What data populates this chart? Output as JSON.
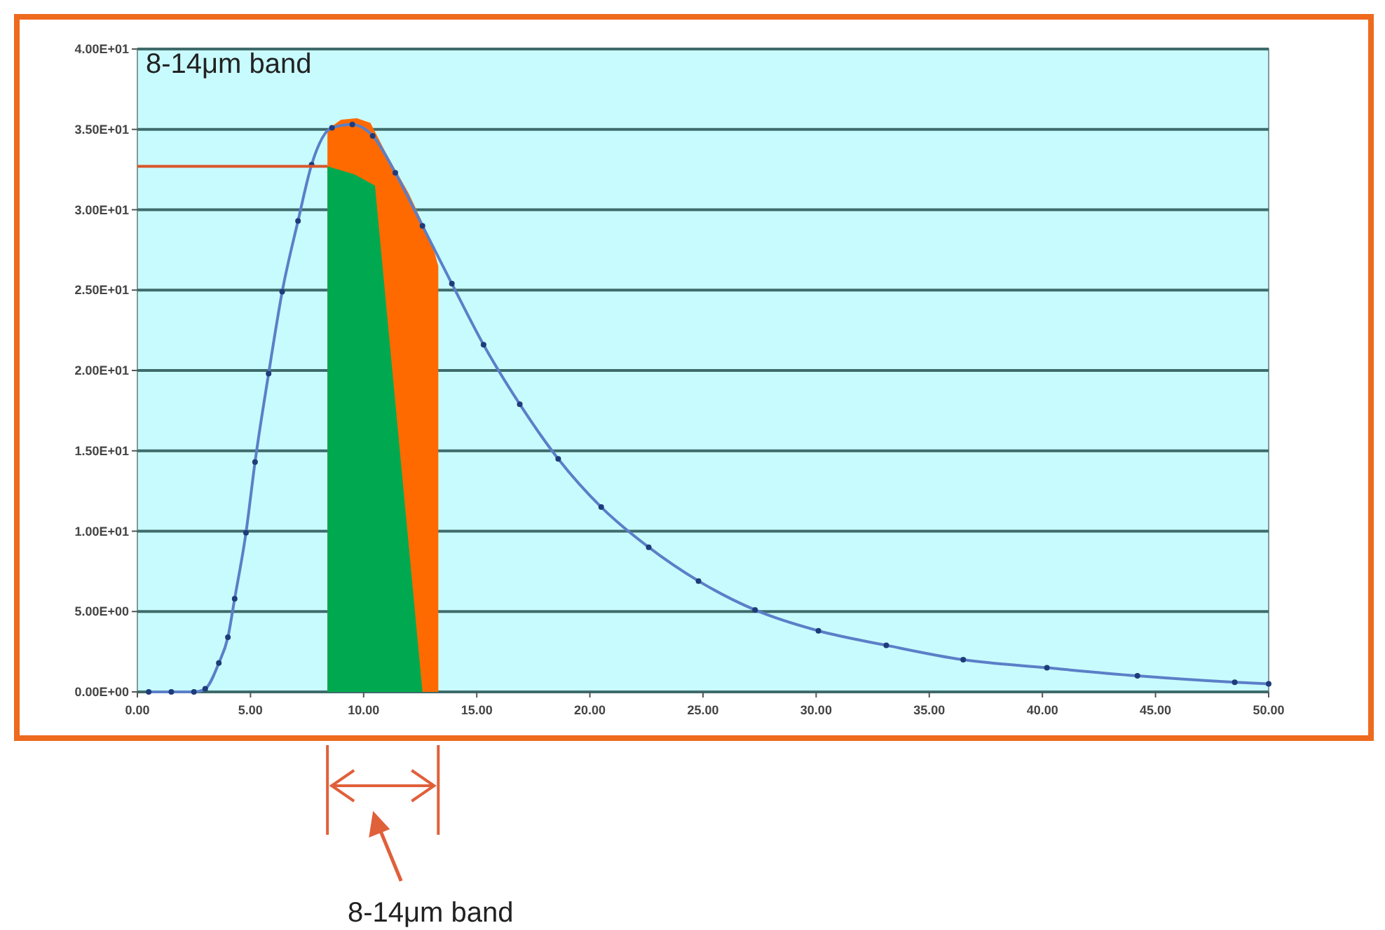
{
  "chart_data": {
    "type": "line",
    "xlim": [
      0,
      50
    ],
    "ylim": [
      0,
      40
    ],
    "xticks": [
      {
        "value": 0,
        "label": "0.00"
      },
      {
        "value": 5,
        "label": "5.00"
      },
      {
        "value": 10,
        "label": "10.00"
      },
      {
        "value": 15,
        "label": "15.00"
      },
      {
        "value": 20,
        "label": "20.00"
      },
      {
        "value": 25,
        "label": "25.00"
      },
      {
        "value": 30,
        "label": "30.00"
      },
      {
        "value": 35,
        "label": "35.00"
      },
      {
        "value": 40,
        "label": "40.00"
      },
      {
        "value": 45,
        "label": "45.00"
      },
      {
        "value": 50,
        "label": "50.00"
      }
    ],
    "yticks": [
      {
        "value": 0,
        "label": "0.00E+00"
      },
      {
        "value": 5,
        "label": "5.00E+00"
      },
      {
        "value": 10,
        "label": "1.00E+01"
      },
      {
        "value": 15,
        "label": "1.50E+01"
      },
      {
        "value": 20,
        "label": "2.00E+01"
      },
      {
        "value": 25,
        "label": "2.50E+01"
      },
      {
        "value": 30,
        "label": "3.00E+01"
      },
      {
        "value": 35,
        "label": "3.50E+01"
      },
      {
        "value": 40,
        "label": "4.00E+01"
      }
    ],
    "grid": "y",
    "series": [
      {
        "type": "area",
        "color": "#ff6a00",
        "x": [
          8.4,
          9.0,
          9.7,
          10.3,
          11.0,
          12.0,
          13.0,
          13.3
        ],
        "values": [
          35.0,
          35.6,
          35.7,
          35.4,
          33.5,
          31.0,
          28.0,
          26.5
        ]
      },
      {
        "type": "area",
        "color": "#00a94f",
        "x": [
          8.4,
          9.6,
          10.5,
          12.6
        ],
        "values": [
          32.7,
          32.2,
          31.5,
          0
        ]
      },
      {
        "color": "#5b7fc8",
        "marker": "circle",
        "x": [
          0.5,
          1.5,
          2.5,
          3.0,
          3.6,
          4.0,
          4.3,
          4.8,
          5.2,
          5.8,
          6.4,
          7.1,
          7.7,
          8.6,
          9.5,
          10.4,
          11.4,
          12.6,
          13.9,
          15.3,
          16.9,
          18.6,
          20.5,
          22.6,
          24.8,
          27.3,
          30.1,
          33.1,
          36.5,
          40.2,
          44.2,
          48.5,
          50
        ],
        "values": [
          0,
          0,
          0,
          0.2,
          1.8,
          3.4,
          5.8,
          9.9,
          14.3,
          19.8,
          24.9,
          29.3,
          32.8,
          35.1,
          35.3,
          34.6,
          32.3,
          29.0,
          25.4,
          21.6,
          17.9,
          14.5,
          11.5,
          9.0,
          6.9,
          5.1,
          3.8,
          2.9,
          2.0,
          1.5,
          1.0,
          0.6,
          0.5
        ]
      },
      {
        "color": "#d9562a",
        "marker": "none",
        "x": [
          0,
          8.4
        ],
        "values": [
          32.7,
          32.7
        ]
      }
    ],
    "annotations": [
      "8-14μm band",
      "8-14μm band"
    ]
  }
}
